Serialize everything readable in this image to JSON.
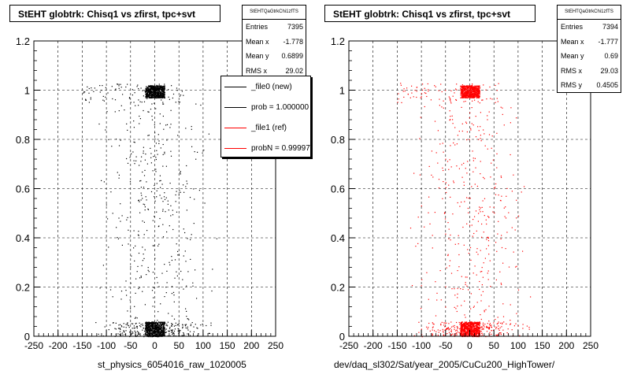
{
  "chart_data": [
    {
      "type": "scatter",
      "title": "StEHT globtrk: Chisq1 vs zfirst, tpc+svt",
      "stats": {
        "name": "StEHTQaGtrkChi1zfTS",
        "entries_label": "Entries",
        "entries": "7395",
        "meanx_label": "Mean x",
        "meanx": "-1.778",
        "meany_label": "Mean y",
        "meany": "0.6899",
        "rmsx_label": "RMS x",
        "rmsx": "29.02"
      },
      "legend": [
        {
          "label": "_file0 (new)",
          "color": "#000000"
        },
        {
          "label": "prob = 1.000000",
          "color": "#000000"
        },
        {
          "label": "_file1 (ref)",
          "color": "#ff0000"
        },
        {
          "label": "probN = 0.999973",
          "color": "#ff0000"
        }
      ],
      "marker_color": "#000000",
      "xlim": [
        -250,
        250
      ],
      "ylim": [
        0,
        1.2
      ],
      "xticks": [
        -250,
        -200,
        -150,
        -100,
        -50,
        0,
        50,
        100,
        150,
        200,
        250
      ],
      "yticks": [
        0,
        0.2,
        0.4,
        0.6,
        0.8,
        1,
        1.2
      ],
      "grid": true,
      "clusters": [
        {
          "x": [
            -20,
            20
          ],
          "y": [
            0.97,
            1.02
          ],
          "density": "high"
        },
        {
          "x": [
            -20,
            20
          ],
          "y": [
            0.0,
            0.06
          ],
          "density": "high"
        },
        {
          "x": [
            -150,
            150
          ],
          "y": [
            0.0,
            0.06
          ],
          "density": "medium"
        },
        {
          "x": [
            -150,
            60
          ],
          "y": [
            0.95,
            1.03
          ],
          "density": "low"
        },
        {
          "x": [
            -150,
            150
          ],
          "y": [
            0.06,
            0.95
          ],
          "density": "sparse"
        }
      ],
      "footer": "st_physics_6054016_raw_1020005"
    },
    {
      "type": "scatter",
      "title": "StEHT globtrk: Chisq1 vs zfirst, tpc+svt",
      "stats": {
        "name": "StEHTQaGtrkChi1zfTS",
        "entries_label": "Entries",
        "entries": "7394",
        "meanx_label": "Mean x",
        "meanx": "-1.777",
        "meany_label": "Mean y",
        "meany": "0.69",
        "rmsx_label": "RMS x",
        "rmsx": "29.03",
        "rmsy_label": "RMS y",
        "rmsy": "0.4505"
      },
      "marker_color": "#ff0000",
      "xlim": [
        -250,
        250
      ],
      "ylim": [
        0,
        1.2
      ],
      "xticks": [
        -250,
        -200,
        -150,
        -100,
        -50,
        0,
        50,
        100,
        150,
        200,
        250
      ],
      "yticks": [
        0,
        0.2,
        0.4,
        0.6,
        0.8,
        1,
        1.2
      ],
      "grid": true,
      "clusters": [
        {
          "x": [
            -20,
            20
          ],
          "y": [
            0.97,
            1.02
          ],
          "density": "high"
        },
        {
          "x": [
            -20,
            20
          ],
          "y": [
            0.0,
            0.06
          ],
          "density": "high"
        },
        {
          "x": [
            -150,
            150
          ],
          "y": [
            0.0,
            0.06
          ],
          "density": "medium"
        },
        {
          "x": [
            -150,
            60
          ],
          "y": [
            0.95,
            1.03
          ],
          "density": "low"
        },
        {
          "x": [
            -150,
            150
          ],
          "y": [
            0.06,
            0.95
          ],
          "density": "sparse"
        }
      ],
      "footer": "dev/daq_sl302/Sat/year_2005/CuCu200_HighTower/"
    }
  ]
}
